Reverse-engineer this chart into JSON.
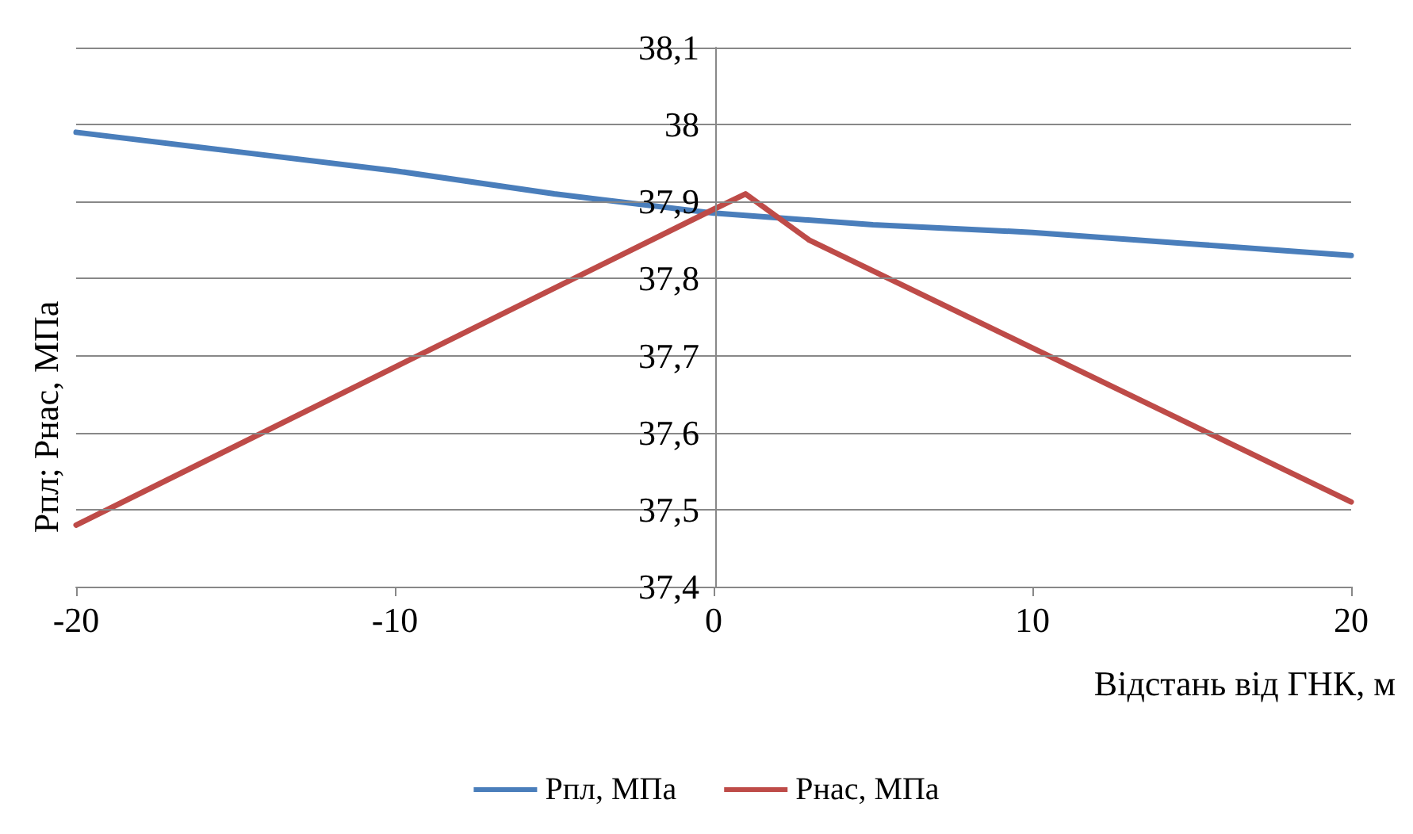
{
  "chart_data": {
    "type": "line",
    "xlabel": "Відстань від ГНК, м",
    "ylabel": "Рпл; Рнас, МПа",
    "xlim": [
      -20,
      20
    ],
    "xticks": [
      -20,
      -10,
      0,
      10,
      20
    ],
    "ylim": [
      37.4,
      38.1
    ],
    "yticks": [
      {
        "value": 37.4,
        "label": "37,4"
      },
      {
        "value": 37.5,
        "label": "37,5"
      },
      {
        "value": 37.6,
        "label": "37,6"
      },
      {
        "value": 37.7,
        "label": "37,7"
      },
      {
        "value": 37.8,
        "label": "37,8"
      },
      {
        "value": 37.9,
        "label": "37,9"
      },
      {
        "value": 38,
        "label": "38"
      },
      {
        "value": 38.1,
        "label": "38,1"
      }
    ],
    "grid": "y",
    "legend": "bottom",
    "marker": "none",
    "line_style": "solid",
    "series": [
      {
        "name": "Рпл, МПа",
        "color": "#4a7ebb",
        "x": [
          -20,
          -15,
          -10,
          -5,
          0,
          5,
          10,
          15,
          20
        ],
        "values": [
          37.99,
          37.965,
          37.94,
          37.91,
          37.885,
          37.87,
          37.86,
          37.845,
          37.83
        ]
      },
      {
        "name": "Рнас, МПа",
        "color": "#be4b48",
        "x": [
          -20,
          -10,
          0,
          1,
          2,
          3,
          10,
          20
        ],
        "values": [
          37.48,
          37.685,
          37.89,
          37.91,
          37.88,
          37.85,
          37.71,
          37.51
        ]
      }
    ]
  }
}
